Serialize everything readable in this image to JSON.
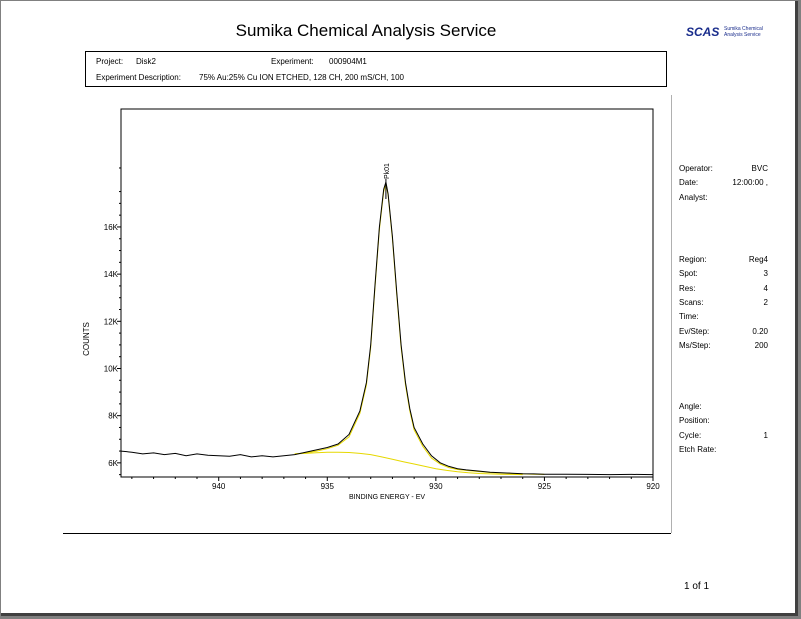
{
  "report": {
    "title": "Sumika Chemical Analysis Service",
    "logo_mark": "SCAS",
    "logo_text": "Sumika Chemical Analysis Service",
    "page_number": "1 of 1"
  },
  "info": {
    "project_label": "Project:",
    "project_value": "Disk2",
    "experiment_label": "Experiment:",
    "experiment_value": "000904M1",
    "description_label": "Experiment Description:",
    "description_value": "75% Au:25% Cu ION ETCHED, 128 CH, 200 mS/CH, 100"
  },
  "side_panel": {
    "group1": [
      {
        "label": "Operator:",
        "value": "BVC"
      },
      {
        "label": "Date:",
        "value": "12:00:00 ,"
      },
      {
        "label": "Analyst:",
        "value": ""
      }
    ],
    "group2": [
      {
        "label": "Region:",
        "value": "Reg4"
      },
      {
        "label": "Spot:",
        "value": "3"
      },
      {
        "label": "Res:",
        "value": "4"
      },
      {
        "label": "Scans:",
        "value": "2"
      },
      {
        "label": "Time:",
        "value": ""
      },
      {
        "label": "Ev/Step:",
        "value": "0.20"
      },
      {
        "label": "Ms/Step:",
        "value": "200"
      }
    ],
    "group3": [
      {
        "label": "Angle:",
        "value": ""
      },
      {
        "label": "Position:",
        "value": ""
      },
      {
        "label": "Cycle:",
        "value": "1"
      },
      {
        "label": "Etch Rate:",
        "value": ""
      }
    ]
  },
  "chart_data": {
    "type": "line",
    "title": "",
    "xlabel": "BINDING ENERGY - EV",
    "ylabel": "COUNTS",
    "xlim": [
      944.5,
      920
    ],
    "ylim": [
      5400,
      21000
    ],
    "x_reversed": true,
    "xticks": [
      940,
      935,
      930,
      925,
      920
    ],
    "xtick_labels": [
      "940",
      "935",
      "930",
      "925",
      "920"
    ],
    "yticks": [
      6000,
      8000,
      10000,
      12000,
      14000,
      16000
    ],
    "ytick_labels": [
      "6K",
      "8K",
      "10K",
      "12K",
      "14K",
      "16K"
    ],
    "peak_label": "Pk01",
    "peak_x": 932.3,
    "series": [
      {
        "role": "spectrum",
        "color": "#000000",
        "x": [
          944.5,
          944,
          943.5,
          943,
          942.5,
          942,
          941.5,
          941,
          940.5,
          940,
          939.5,
          939,
          938.5,
          938,
          937.5,
          937,
          936.5,
          936,
          935.5,
          935,
          934.5,
          934,
          933.5,
          933.2,
          933,
          932.8,
          932.6,
          932.4,
          932.3,
          932.2,
          932,
          931.8,
          931.6,
          931.4,
          931.2,
          931,
          930.6,
          930.2,
          929.8,
          929.4,
          929,
          928.6,
          928,
          927.5,
          927,
          926.5,
          926,
          925.5,
          925,
          924,
          923,
          922,
          921,
          920
        ],
        "y": [
          6500,
          6450,
          6380,
          6420,
          6350,
          6400,
          6300,
          6380,
          6320,
          6300,
          6280,
          6350,
          6250,
          6300,
          6250,
          6300,
          6350,
          6450,
          6550,
          6650,
          6800,
          7200,
          8200,
          9400,
          11000,
          13600,
          16000,
          17600,
          17900,
          17400,
          15600,
          13200,
          11000,
          9400,
          8300,
          7500,
          6800,
          6300,
          6000,
          5850,
          5750,
          5700,
          5650,
          5600,
          5580,
          5560,
          5540,
          5530,
          5520,
          5520,
          5510,
          5500,
          5510,
          5500
        ]
      },
      {
        "role": "fitted-peak",
        "color": "#e6d800",
        "x": [
          936.5,
          936,
          935.5,
          935,
          934.5,
          934,
          933.5,
          933.2,
          933,
          932.8,
          932.6,
          932.4,
          932.3,
          932.2,
          932,
          931.8,
          931.6,
          931.4,
          931.2,
          931,
          930.6,
          930.2,
          929.8,
          929.4,
          929,
          928.6,
          928,
          927.5,
          927,
          926.5,
          926,
          925.5,
          925
        ],
        "y": [
          6380,
          6420,
          6500,
          6600,
          6750,
          7100,
          8100,
          9300,
          10900,
          13500,
          15900,
          17500,
          17850,
          17350,
          15500,
          13100,
          10900,
          9300,
          8200,
          7400,
          6700,
          6200,
          5950,
          5800,
          5720,
          5680,
          5630,
          5590,
          5570,
          5550,
          5530,
          5520,
          5510
        ]
      },
      {
        "role": "background",
        "color": "#e6d800",
        "x": [
          936.5,
          936,
          935.5,
          935,
          934.5,
          934,
          933.5,
          933,
          932.5,
          932,
          931.5,
          931,
          930.5,
          930,
          929.5,
          929,
          928.5,
          928,
          927.5,
          927,
          926.5,
          926
        ],
        "y": [
          6380,
          6400,
          6430,
          6450,
          6450,
          6440,
          6400,
          6350,
          6250,
          6150,
          6050,
          5950,
          5850,
          5750,
          5680,
          5620,
          5580,
          5550,
          5530,
          5520,
          5510,
          5500
        ]
      }
    ]
  }
}
